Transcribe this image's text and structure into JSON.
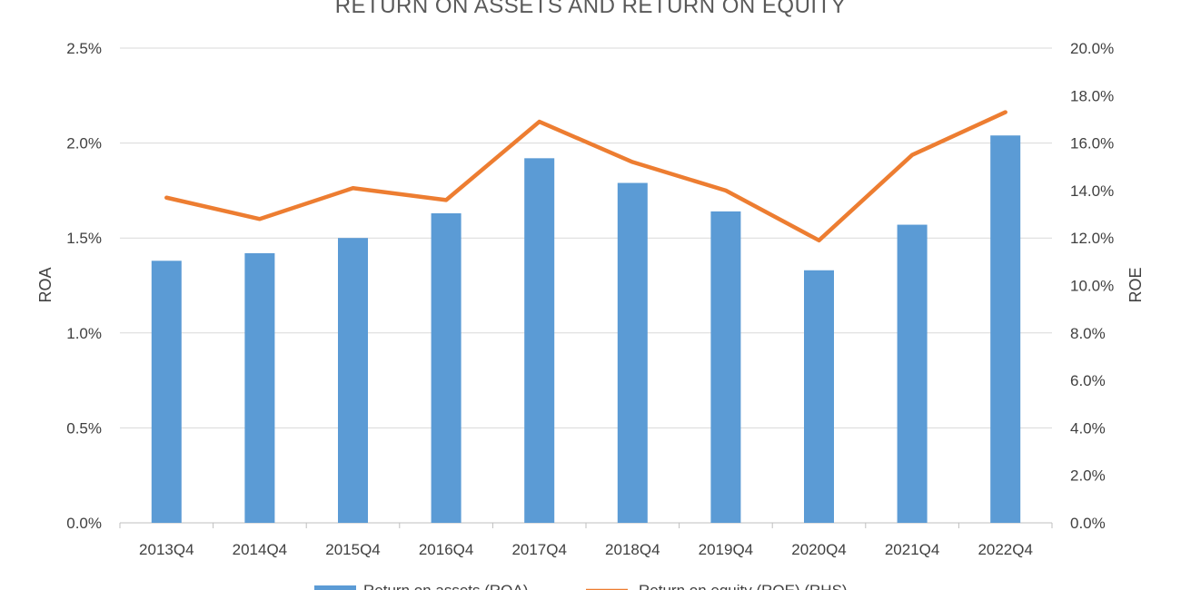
{
  "chart_data": {
    "type": "bar",
    "title": "RETURN ON ASSETS AND RETURN ON EQUITY",
    "categories": [
      "2013Q4",
      "2014Q4",
      "2015Q4",
      "2016Q4",
      "2017Q4",
      "2018Q4",
      "2019Q4",
      "2020Q4",
      "2021Q4",
      "2022Q4"
    ],
    "series": [
      {
        "name": "Return on assets (ROA)",
        "type": "bar",
        "axis": "left",
        "color": "#5b9bd5",
        "values": [
          1.38,
          1.42,
          1.5,
          1.63,
          1.92,
          1.79,
          1.64,
          1.33,
          1.57,
          2.04
        ]
      },
      {
        "name": "Return on equity (ROE) (RHS)",
        "type": "line",
        "axis": "right",
        "color": "#ed7d31",
        "values": [
          13.7,
          12.8,
          14.1,
          13.6,
          16.9,
          15.2,
          14.0,
          11.9,
          15.5,
          17.3
        ]
      }
    ],
    "left_axis": {
      "label": "ROA",
      "range": [
        0,
        2.5
      ],
      "ticks": [
        "0.0%",
        "0.5%",
        "1.0%",
        "1.5%",
        "2.0%",
        "2.5%"
      ]
    },
    "right_axis": {
      "label": "ROE",
      "range": [
        0,
        20
      ],
      "ticks": [
        "0.0%",
        "2.0%",
        "4.0%",
        "6.0%",
        "8.0%",
        "10.0%",
        "12.0%",
        "14.0%",
        "16.0%",
        "18.0%",
        "20.0%"
      ]
    },
    "grid": true,
    "legend_position": "bottom"
  }
}
